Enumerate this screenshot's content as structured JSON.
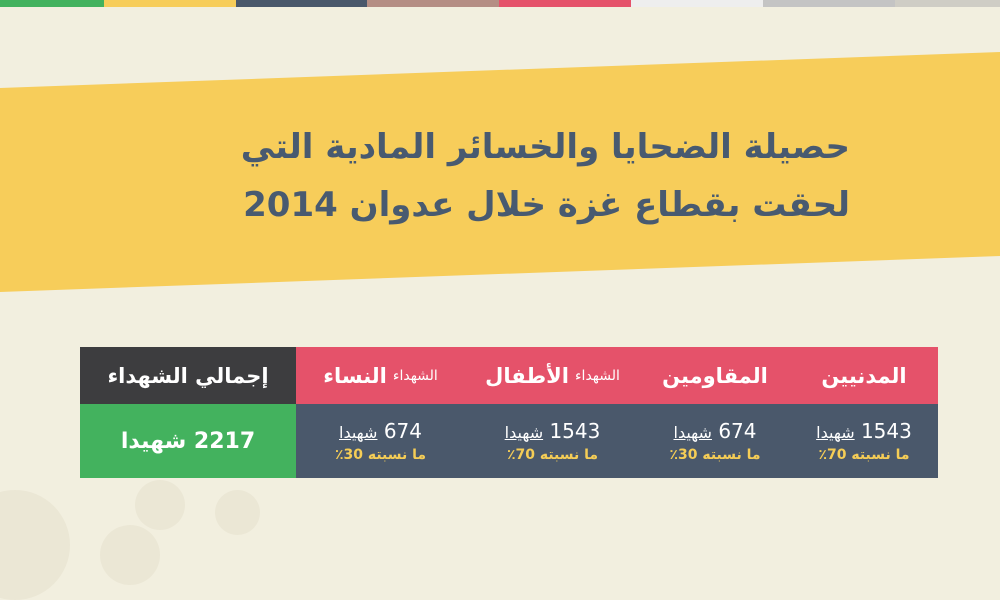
{
  "colors": {
    "background": "#f2efdf",
    "band": "#f7cd5a",
    "strip": [
      "#43b25e",
      "#f7cd5a",
      "#4a586b",
      "#b58e84",
      "#e5526a",
      "#eeeeee",
      "#c4c4c4",
      "#cfcdc5"
    ]
  },
  "title": {
    "line1": "حصيلة الضحايا والخسائر المادية التي",
    "line2": "لحقت بقطاع غزة خلال عدوان 2014"
  },
  "table": {
    "columns": [
      {
        "label": "المدنيين",
        "prefix": "",
        "count": "1543",
        "unit": "شهيدا",
        "percent": "ما نسبته 70٪"
      },
      {
        "label": "المقاومين",
        "prefix": "",
        "count": "674",
        "unit": "شهيدا",
        "percent": "ما نسبته 30٪"
      },
      {
        "label": "الأطفال",
        "prefix": "الشهداء",
        "count": "1543",
        "unit": "شهيدا",
        "percent": "ما نسبته 70٪"
      },
      {
        "label": "النساء",
        "prefix": "الشهداء",
        "count": "674",
        "unit": "شهيدا",
        "percent": "ما نسبته 30٪"
      }
    ],
    "total": {
      "label": "إجمالي الشهداء",
      "value": "2217 شهيدا"
    }
  }
}
